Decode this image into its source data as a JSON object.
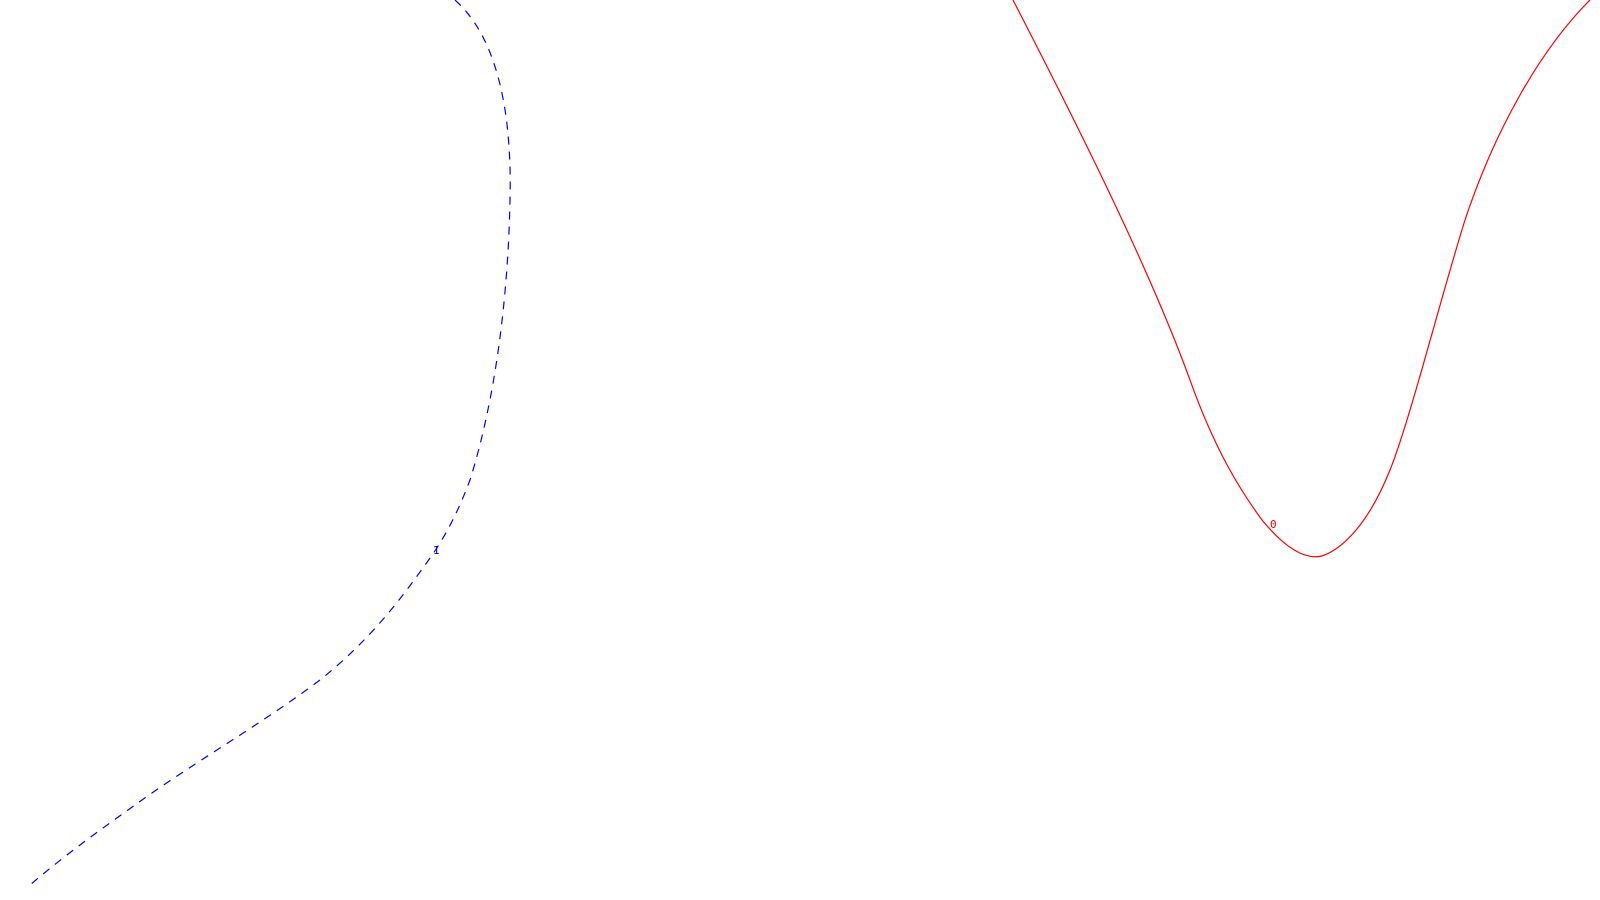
{
  "diagram": {
    "background_color": "#ffffff",
    "curves": [
      {
        "id": "curve-0",
        "label": "0",
        "color": "#ff0000",
        "line_style": "solid"
      },
      {
        "id": "curve-1",
        "label": "1",
        "color": "#0000ff",
        "line_style": "dashed"
      }
    ]
  }
}
